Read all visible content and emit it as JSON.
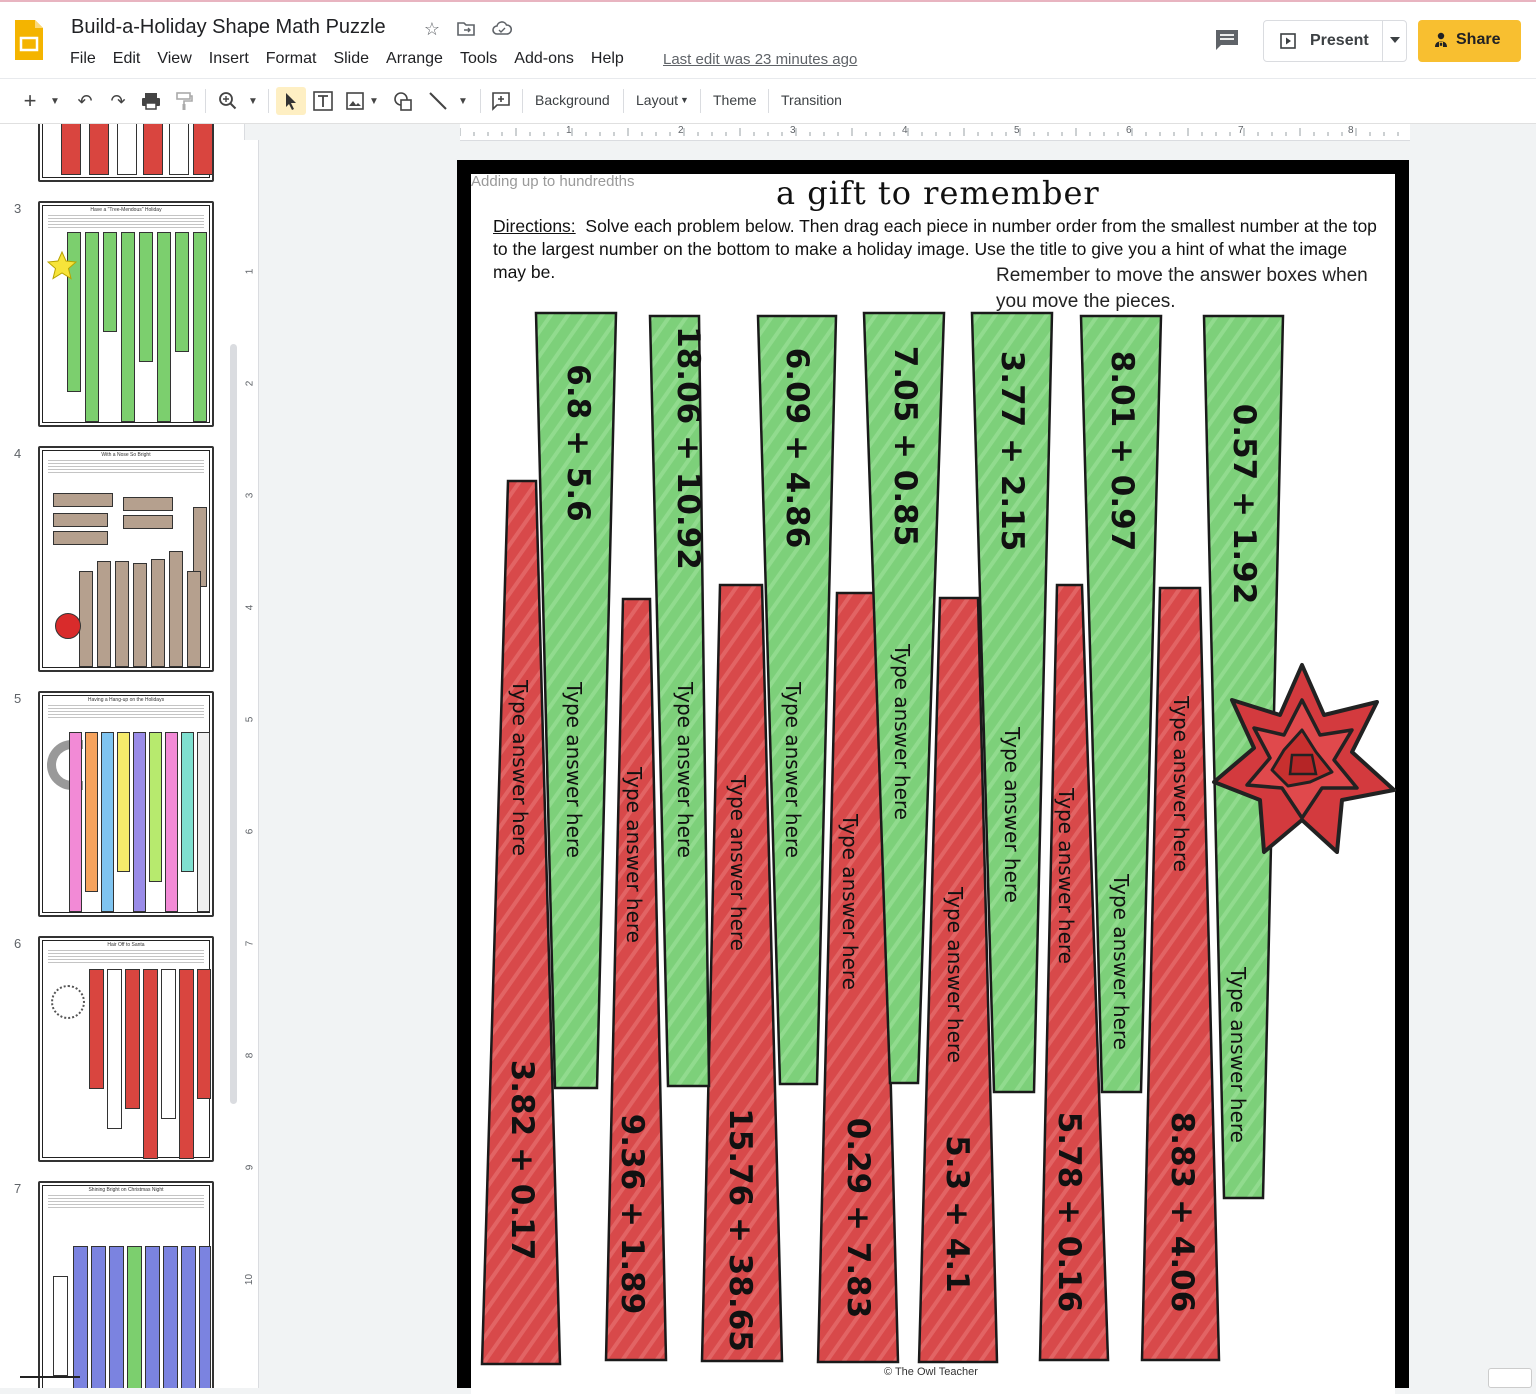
{
  "header": {
    "title": "Build-a-Holiday Shape Math Puzzle",
    "menu": [
      "File",
      "Edit",
      "View",
      "Insert",
      "Format",
      "Slide",
      "Arrange",
      "Tools",
      "Add-ons",
      "Help"
    ],
    "last_edit": "Last edit was 23 minutes ago",
    "present_label": "Present",
    "share_label": "Share",
    "icons": [
      "slides-logo-icon",
      "star-icon",
      "move-to-folder-icon",
      "cloud-status-icon",
      "comment-icon",
      "present-icon",
      "share-person-icon"
    ],
    "accent_color": "#f8bf30"
  },
  "toolbar": {
    "background_label": "Background",
    "layout_label": "Layout",
    "theme_label": "Theme",
    "transition_label": "Transition"
  },
  "filmstrip": {
    "slides": [
      {
        "number": "3",
        "title": "Have a \"Tree-Mendous\" Holiday",
        "color": "#7ccf6e"
      },
      {
        "number": "4",
        "title": "With a Nose So Bright",
        "color": "#b5a08e"
      },
      {
        "number": "5",
        "title": "Having a Hang-up on the Holidays",
        "color": "multicolor"
      },
      {
        "number": "6",
        "title": "Hair Off to Santa",
        "color": "#d9453f"
      },
      {
        "number": "7",
        "title": "Shining Bright on Christmas Night",
        "color": "#7b83e0"
      }
    ]
  },
  "rulers": {
    "horizontal": [
      "1",
      "2",
      "3",
      "4",
      "5",
      "6",
      "7",
      "8"
    ],
    "vertical": [
      "1",
      "2",
      "3",
      "4",
      "5",
      "6",
      "7",
      "8",
      "9",
      "10"
    ]
  },
  "slide": {
    "subtitle": "Adding up to hundredths",
    "title": "a gift to remember",
    "directions_label": "Directions:",
    "directions_text": "Solve each problem below. Then drag each piece in number order from the smallest number at the top to the largest number on the bottom to make a holiday image. Use the title to give you a hint of what the image may be.",
    "remember": "Remember to move the answer boxes when you move the pieces.",
    "credit": "© The Owl Teacher",
    "answer_placeholder": "Type answer here",
    "green_color": "#7dd07a",
    "red_color": "#d8494a",
    "green_pieces": [
      "6.8 + 5.6",
      "18.06 + 10.92",
      "6.09 + 4.86",
      "7.05 + 0.85",
      "3.77 + 2.15",
      "8.01 + 0.97",
      "0.57 + 1.92"
    ],
    "red_pieces": [
      "3.82 + 0.17",
      "9.36 + 1.89",
      "15.76 + 38.65",
      "0.29 + 7.83",
      "5.3 + 4.1",
      "5.78 + 0.16",
      "8.83 + 4.06"
    ],
    "decoration": "gift-bow-icon"
  }
}
